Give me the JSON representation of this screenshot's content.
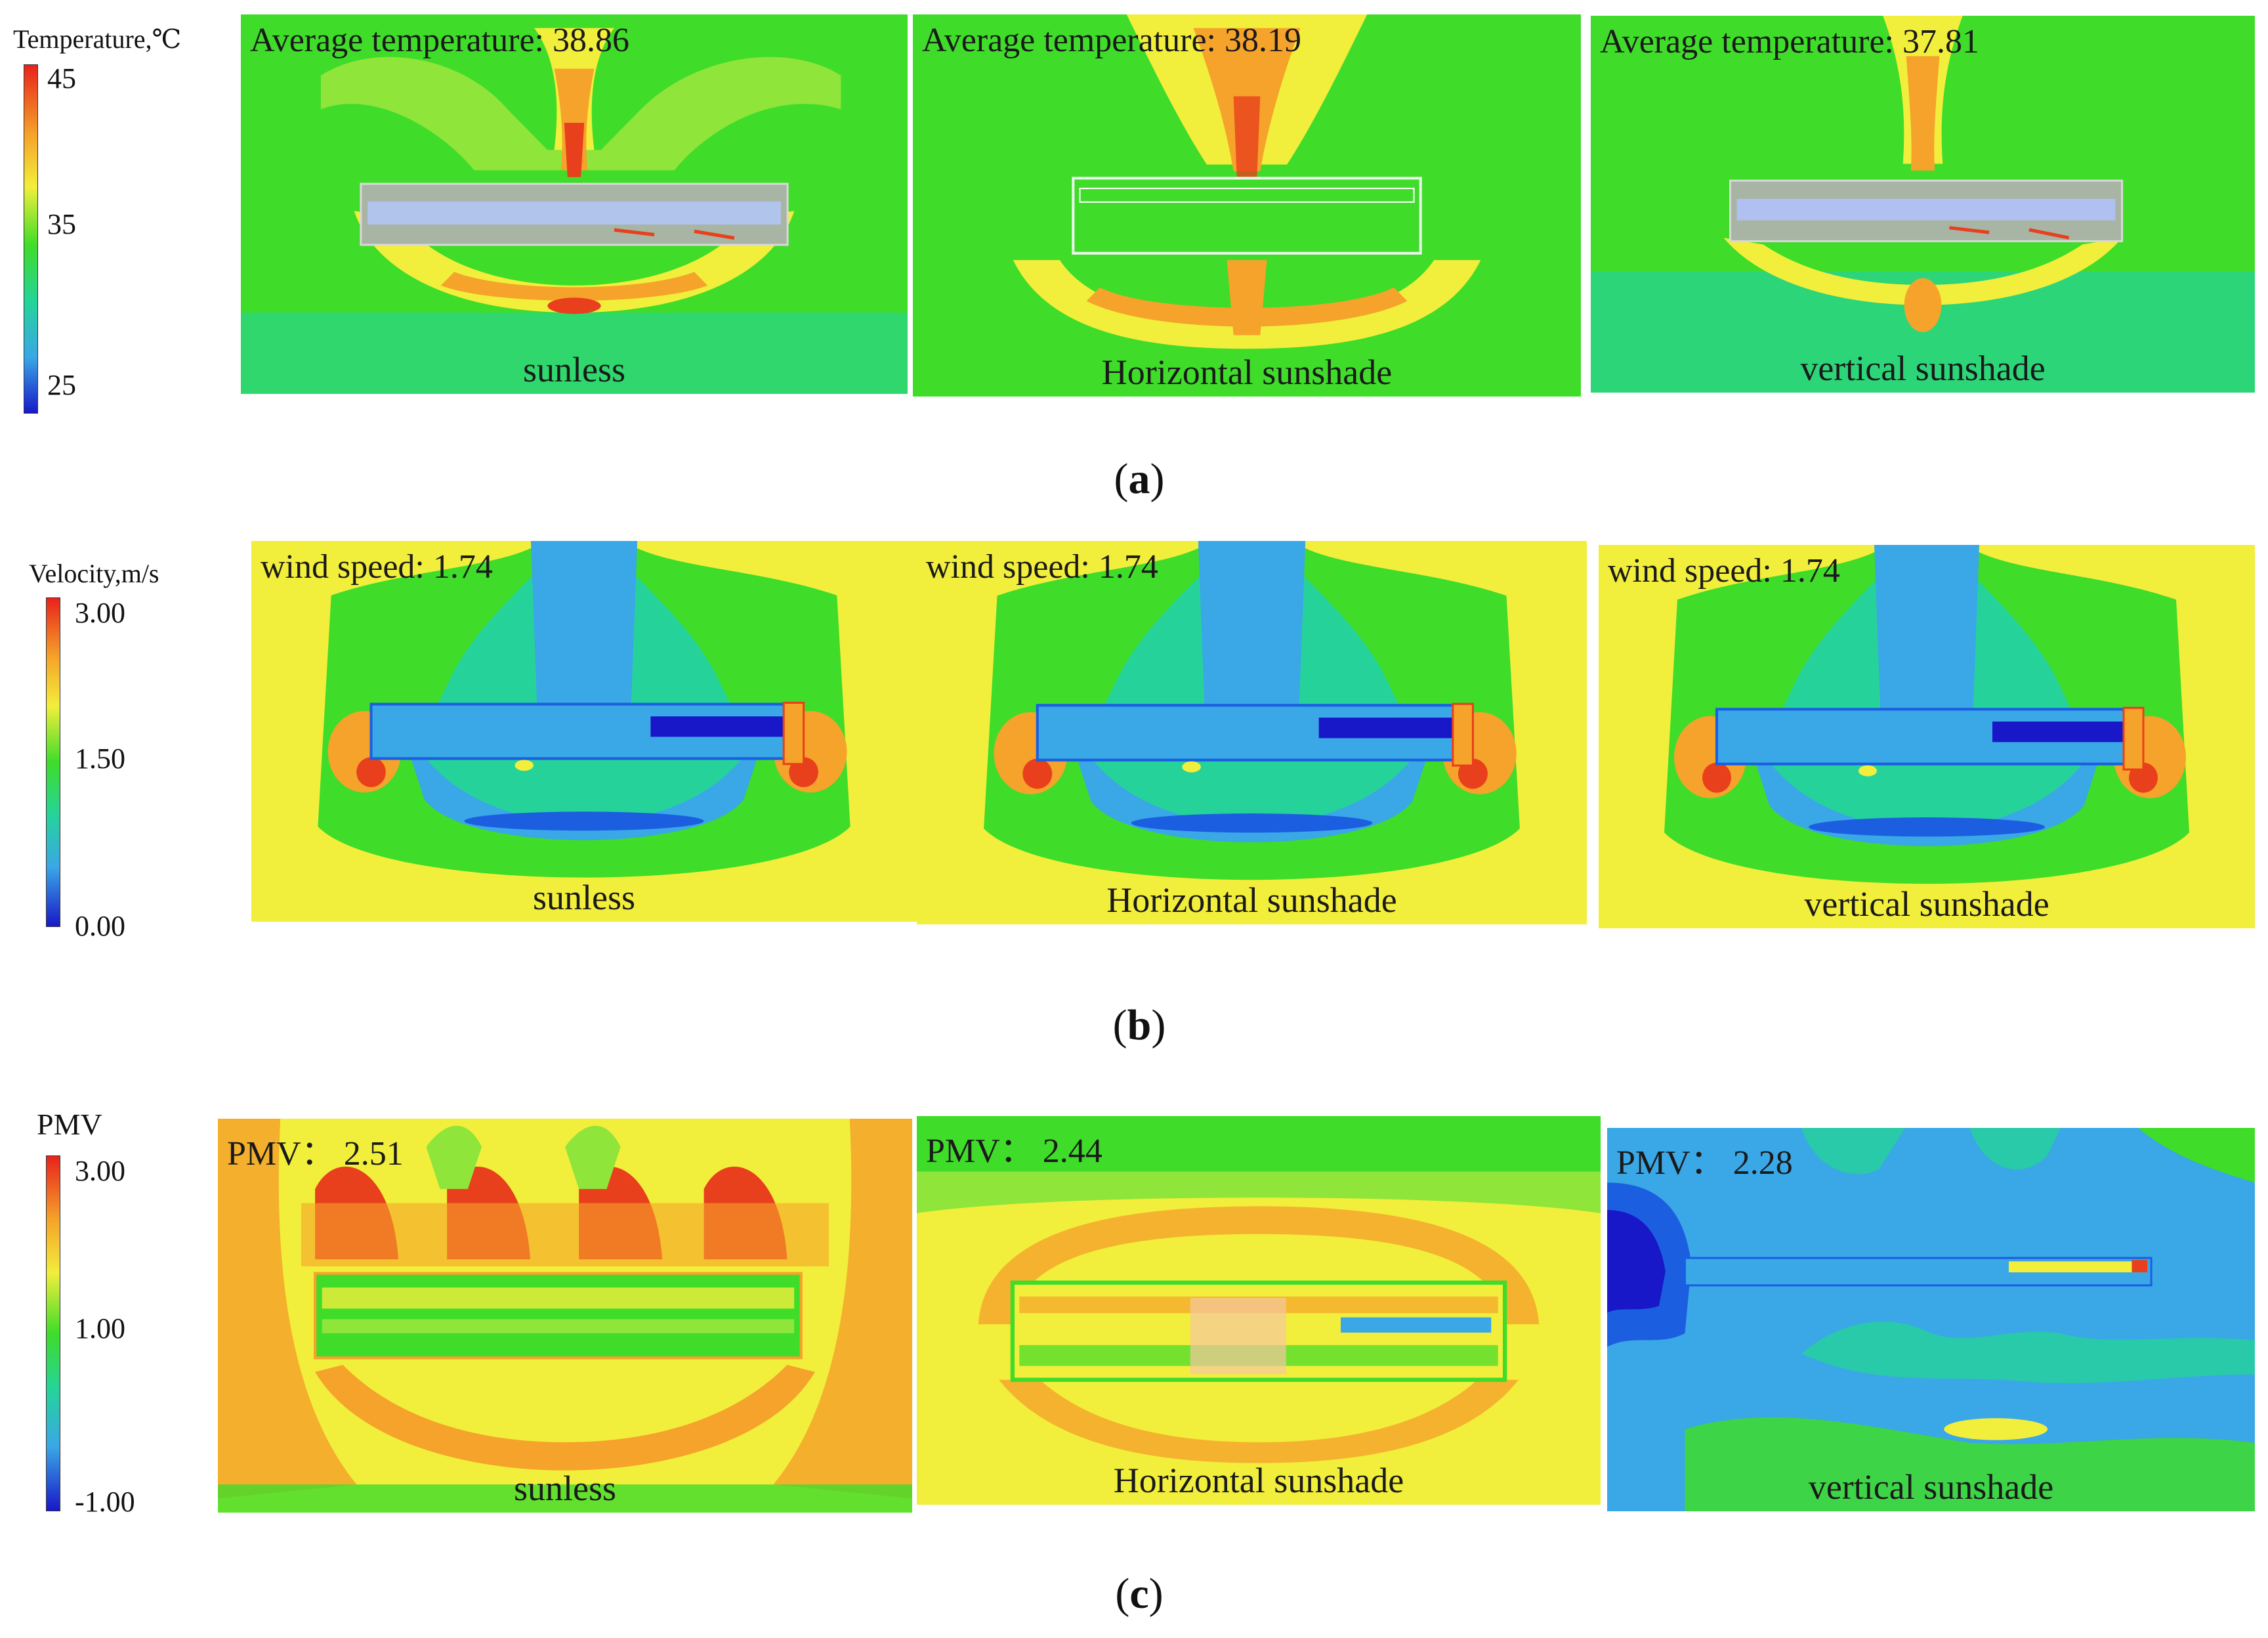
{
  "legends": {
    "a": {
      "title": "Temperature,℃",
      "ticks": [
        "45",
        "35",
        "25"
      ]
    },
    "b": {
      "title": "Velocity,m/s",
      "ticks": [
        "3.00",
        "1.50",
        "0.00"
      ]
    },
    "c": {
      "title": "PMV",
      "ticks": [
        "3.00",
        "1.00",
        "-1.00"
      ]
    }
  },
  "rows": {
    "a": {
      "caption_open": "(",
      "caption_letter": "a",
      "caption_close": ")",
      "panels": [
        {
          "corner": "Average temperature: 38.86",
          "label": "sunless"
        },
        {
          "corner": "Average temperature: 38.19",
          "label": "Horizontal sunshade"
        },
        {
          "corner": "Average temperature: 37.81",
          "label": "vertical sunshade"
        }
      ]
    },
    "b": {
      "caption_open": "(",
      "caption_letter": "b",
      "caption_close": ")",
      "panels": [
        {
          "corner": "wind speed: 1.74",
          "label": "sunless"
        },
        {
          "corner": "wind speed: 1.74",
          "label": "Horizontal sunshade"
        },
        {
          "corner": "wind speed: 1.74",
          "label": "vertical sunshade"
        }
      ]
    },
    "c": {
      "caption_open": "(",
      "caption_letter": "c",
      "caption_close": ")",
      "panels": [
        {
          "corner": "PMV： 2.51",
          "label": "sunless"
        },
        {
          "corner": "PMV： 2.44",
          "label": "Horizontal sunshade"
        },
        {
          "corner": "PMV： 2.28",
          "label": "vertical sunshade"
        }
      ]
    }
  },
  "colors": {
    "green": "#3fdc2a",
    "teal": "#25d39a",
    "yellow": "#f2ee3c",
    "orange": "#f5a32a",
    "red": "#e8401c",
    "light_blue": "#3aa7e6",
    "blue": "#1b5fe0",
    "dark_blue": "#1818c8",
    "gray": "#a8b4a4"
  }
}
